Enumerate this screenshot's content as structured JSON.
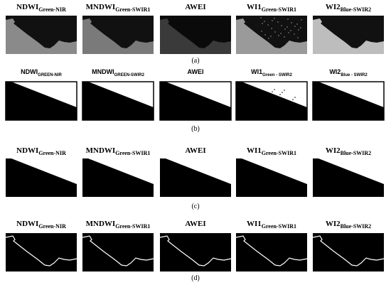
{
  "rows": [
    {
      "caption": "(a)",
      "panels": [
        {
          "name": "NDWI",
          "sub": "Green-NIR"
        },
        {
          "name": "MNDWI",
          "sub": "Green-SWIR1"
        },
        {
          "name": "AWEI"
        },
        {
          "name": "WI1",
          "sub": "Green-SWIR1"
        },
        {
          "name": "WI2",
          "sub": "Blue-SWIR2"
        }
      ]
    },
    {
      "caption": "(b)",
      "panels": [
        {
          "name": "NDWI",
          "sub": "GREEN-NIR"
        },
        {
          "name": "MNDWI",
          "sub": "GREEN-SWIR2"
        },
        {
          "name": "AWEI"
        },
        {
          "name": "WI1",
          "sub": "Green - SWIR2"
        },
        {
          "name": "WI2",
          "sub": "Blue - SWIR2"
        }
      ]
    },
    {
      "caption": "(c)",
      "panels": [
        {
          "name": "NDWI",
          "sub": "Green-NIR"
        },
        {
          "name": "MNDWI",
          "sub": "Green-SWIR1"
        },
        {
          "name": "AWEI"
        },
        {
          "name": "WI1",
          "sub": "Green-SWIR1"
        },
        {
          "name": "WI2",
          "sub": "Blue-SWIR2"
        }
      ]
    },
    {
      "caption": "(d)",
      "panels": [
        {
          "name": "NDWI",
          "sub": "Green-NIR"
        },
        {
          "name": "MNDWI",
          "sub": "Green-SWIR1"
        },
        {
          "name": "AWEI"
        },
        {
          "name": "WI1",
          "sub": "Green-SWIR1"
        },
        {
          "name": "WI2",
          "sub": "Blue-SWIR2"
        }
      ]
    }
  ]
}
